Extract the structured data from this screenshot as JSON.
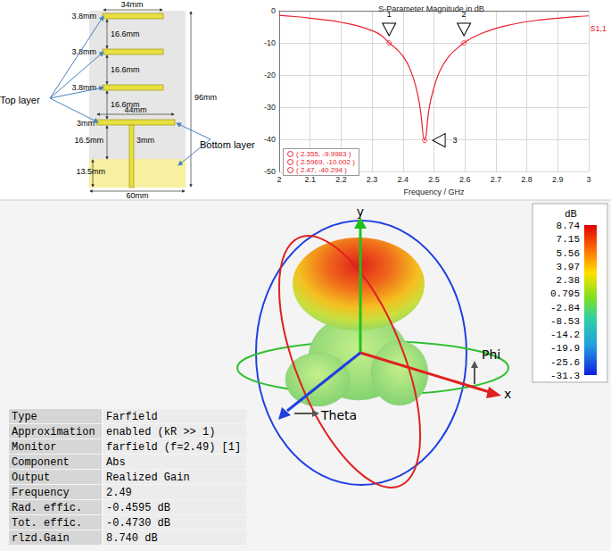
{
  "chart_data": {
    "type": "line",
    "title": "S-Parameter Magnitude in dB",
    "x_label": "Frequency / GHz",
    "x": [
      2,
      2.05,
      2.1,
      2.15,
      2.2,
      2.25,
      2.3,
      2.33,
      2.355,
      2.38,
      2.4,
      2.42,
      2.44,
      2.455,
      2.47,
      2.485,
      2.5,
      2.52,
      2.55,
      2.575,
      2.5969,
      2.62,
      2.65,
      2.7,
      2.75,
      2.8,
      2.85,
      2.9,
      2.95,
      3
    ],
    "series": [
      {
        "name": "S1,1",
        "color": "#e8202a",
        "values": [
          -1.4,
          -1.8,
          -2.3,
          -2.9,
          -3.6,
          -4.6,
          -6.2,
          -7.7,
          -9.9983,
          -12,
          -14.2,
          -17.5,
          -23,
          -30,
          -40.294,
          -30,
          -24,
          -18.5,
          -14,
          -11.7,
          -10.002,
          -8.6,
          -7.2,
          -5.5,
          -4.3,
          -3.4,
          -2.8,
          -2.3,
          -1.9,
          -1.6
        ]
      }
    ],
    "xlim": [
      2,
      3
    ],
    "xticks": [
      2,
      2.1,
      2.2,
      2.3,
      2.4,
      2.5,
      2.6,
      2.7,
      2.8,
      2.9,
      3
    ],
    "ylim": [
      -50,
      0
    ],
    "yticks": [
      -50,
      -40,
      -30,
      -20,
      -10,
      0
    ],
    "grid": true,
    "legend": "right",
    "markers": [
      {
        "label": "1",
        "x": 2.355,
        "y": -9.9983,
        "readout": "( 2.355, -9.9983 )"
      },
      {
        "label": "2",
        "x": 2.5969,
        "y": -10.002,
        "readout": "( 2.5969, -10.002 )"
      },
      {
        "label": "3",
        "x": 2.47,
        "y": -40.294,
        "readout": "( 2.47, -40.294 )"
      }
    ]
  },
  "antenna_diagram": {
    "dimension_labels": [
      "34mm",
      "3.8mm",
      "16.6mm",
      "3.8mm",
      "16.6mm",
      "3.8mm",
      "16.6mm",
      "44mm",
      "3mm",
      "16.5mm",
      "3mm",
      "13.5mm",
      "60mm",
      "96mm"
    ],
    "layer_labels": [
      "Top layer",
      "Bottom layer"
    ]
  },
  "farfield_plot": {
    "axis_labels": [
      "y",
      "x",
      "Phi",
      "Theta"
    ],
    "colorbar": {
      "title": "dB",
      "ticks": [
        8.74,
        7.15,
        5.56,
        3.97,
        2.38,
        0.795,
        -2.84,
        -8.53,
        -14.2,
        -19.9,
        -25.6,
        -31.3
      ]
    },
    "summary_table": [
      [
        "Type",
        "Farfield"
      ],
      [
        "Approximation",
        "enabled (kR >> 1)"
      ],
      [
        "Monitor",
        "farfield (f=2.49) [1]"
      ],
      [
        "Component",
        "Abs"
      ],
      [
        "Output",
        "Realized Gain"
      ],
      [
        "Frequency",
        "2.49"
      ],
      [
        "Rad. effic.",
        "-0.4595 dB"
      ],
      [
        "Tot. effic.",
        "-0.4730 dB"
      ],
      [
        "rlzd.Gain",
        "8.740 dB"
      ]
    ]
  }
}
